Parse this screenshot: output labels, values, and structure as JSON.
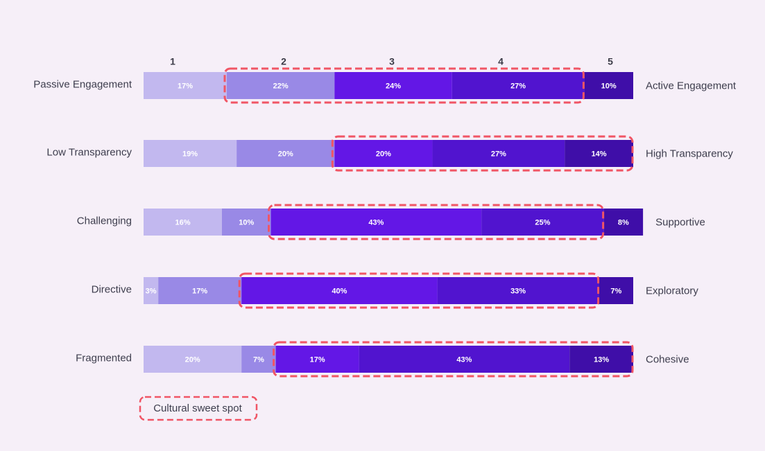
{
  "chart_data": {
    "type": "bar",
    "stacked": true,
    "orientation": "horizontal",
    "scale_labels": [
      "1",
      "2",
      "3",
      "4",
      "5"
    ],
    "rows": [
      {
        "left_label": "Passive Engagement",
        "right_label": "Active Engagement",
        "values": [
          17,
          22,
          24,
          27,
          10
        ],
        "value_labels": [
          "17%",
          "22%",
          "24%",
          "27%",
          "10%"
        ],
        "sweet_spot": [
          2,
          4
        ]
      },
      {
        "left_label": "Low Transparency",
        "right_label": "High Transparency",
        "values": [
          19,
          20,
          20,
          27,
          14
        ],
        "value_labels": [
          "19%",
          "20%",
          "20%",
          "27%",
          "14%"
        ],
        "sweet_spot": [
          3,
          5
        ]
      },
      {
        "left_label": "Challenging",
        "right_label": "Supportive",
        "values": [
          16,
          10,
          43,
          25,
          8
        ],
        "value_labels": [
          "16%",
          "10%",
          "43%",
          "25%",
          "8%"
        ],
        "sweet_spot": [
          3,
          4
        ]
      },
      {
        "left_label": "Directive",
        "right_label": "Exploratory",
        "values": [
          3,
          17,
          40,
          33,
          7
        ],
        "value_labels": [
          "3%",
          "17%",
          "40%",
          "33%",
          "7%"
        ],
        "sweet_spot": [
          3,
          4
        ]
      },
      {
        "left_label": "Fragmented",
        "right_label": "Cohesive",
        "values": [
          20,
          7,
          17,
          43,
          13
        ],
        "value_labels": [
          "20%",
          "7%",
          "17%",
          "43%",
          "13%"
        ],
        "sweet_spot": [
          3,
          5
        ]
      }
    ],
    "legend": {
      "label": "Cultural sweet spot",
      "placement": "bottom-left"
    },
    "colors": {
      "segments": [
        "#c2b8ef",
        "#9989e6",
        "#6317e6",
        "#5114cf",
        "#3f0ea8"
      ],
      "sweet_spot_outline": "#f05565",
      "segment_label": "#ffffff",
      "text": "#3d3d4d",
      "scale_label": "#3b3b47",
      "background": "#f6eff8"
    }
  }
}
